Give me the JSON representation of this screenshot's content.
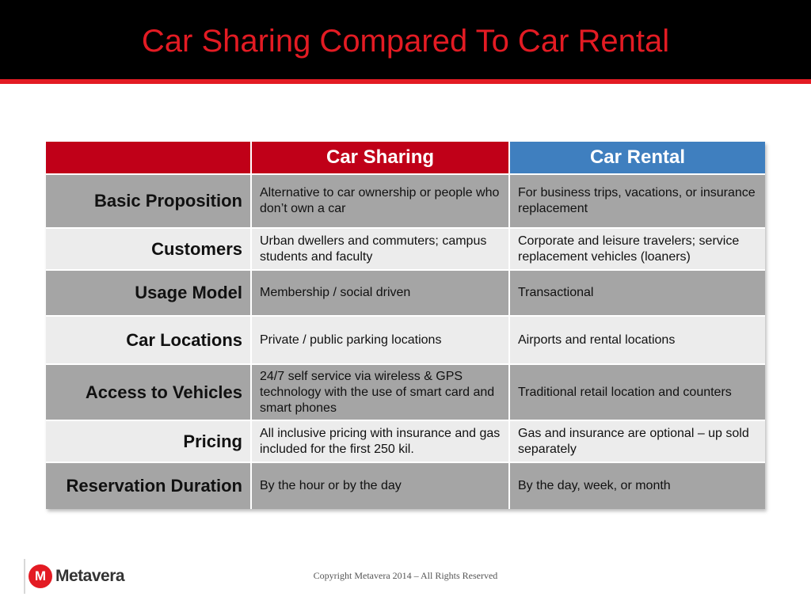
{
  "title": "Car Sharing Compared To Car Rental",
  "table": {
    "headers": [
      "",
      "Car Sharing",
      "Car Rental"
    ],
    "rows": [
      {
        "label": "Basic Proposition",
        "sharing": "Alternative to car ownership or people who don’t own a car",
        "rental": "For business trips, vacations, or insurance replacement"
      },
      {
        "label": "Customers",
        "sharing": "Urban dwellers and commuters; campus students and faculty",
        "rental": "Corporate and leisure travelers; service replacement vehicles (loaners)"
      },
      {
        "label": "Usage Model",
        "sharing": "Membership / social driven",
        "rental": "Transactional"
      },
      {
        "label": "Car Locations",
        "sharing": "Private / public parking locations",
        "rental": "Airports and rental locations"
      },
      {
        "label": "Access to Vehicles",
        "sharing": "24/7 self service via wireless & GPS technology with the use of smart card and smart phones",
        "rental": "Traditional retail location and counters"
      },
      {
        "label": "Pricing",
        "sharing": "All inclusive pricing with insurance and gas included for the first 250 kil.",
        "rental": "Gas and insurance are optional – up sold separately"
      },
      {
        "label": "Reservation Duration",
        "sharing": "By the hour or by the day",
        "rental": "By the day, week, or month"
      }
    ]
  },
  "footer": {
    "logo_mark": "M",
    "logo_text": "Metavera",
    "copyright": "Copyright Metavera 2014 – All Rights Reserved"
  },
  "colors": {
    "title_red": "#e31b23",
    "sharing_header": "#c00018",
    "rental_header": "#3f7fbf",
    "row_dark": "#a5a5a5",
    "row_light": "#ececec"
  }
}
